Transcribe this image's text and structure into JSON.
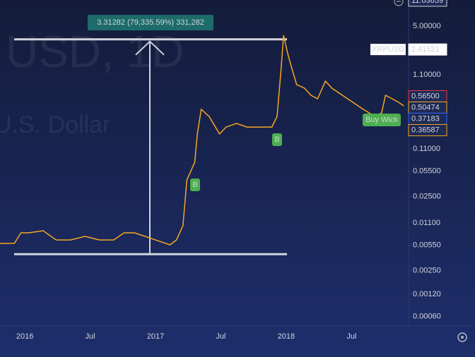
{
  "chart_data": {
    "type": "line",
    "watermark": "USD, 1D",
    "watermark_subtitle": "U.S. Dollar",
    "symbol": "XRPUSD",
    "measure_label": "3.31282 (79,335.59%) 331,282",
    "measure_range": [
      0.004176,
      3.317
    ],
    "signal_labels": [
      "B",
      "B",
      "Buy Wick"
    ],
    "log_scale": true,
    "xlim": [
      2015.81,
      2018.92
    ],
    "ylim": [
      0.00042,
      11.25
    ],
    "xticks": [
      {
        "value": 2016,
        "label": "2016"
      },
      {
        "value": 2016.5,
        "label": "Jul"
      },
      {
        "value": 2017,
        "label": "2017"
      },
      {
        "value": 2017.5,
        "label": "Jul"
      },
      {
        "value": 2018,
        "label": "2018"
      },
      {
        "value": 2018.5,
        "label": "Jul"
      }
    ],
    "yticks": [
      {
        "value": 5,
        "label": "5.00000"
      },
      {
        "value": 1.1,
        "label": "1.10000"
      },
      {
        "value": 0.11,
        "label": "0.11000"
      },
      {
        "value": 0.055,
        "label": "0.05500"
      },
      {
        "value": 0.025,
        "label": "0.02500"
      },
      {
        "value": 0.011,
        "label": "0.01100"
      },
      {
        "value": 0.0055,
        "label": "0.00550"
      },
      {
        "value": 0.0025,
        "label": "0.00250"
      },
      {
        "value": 0.0012,
        "label": "0.00120"
      },
      {
        "value": 0.0006,
        "label": "0.00060"
      }
    ],
    "price_labels": [
      {
        "value": 11.03659,
        "label": "11.03659",
        "color": "#d1d4dc"
      },
      {
        "value": 2.41521,
        "label": "2.41521",
        "color": "#ffffff"
      },
      {
        "value": 0.565,
        "label": "0.56500",
        "color": "#f23645"
      },
      {
        "value": 0.50474,
        "label": "0.50474",
        "color": "#f5a623"
      },
      {
        "value": 0.37183,
        "label": "0.37183",
        "color": "#2962ff"
      },
      {
        "value": 0.36587,
        "label": "0.36587",
        "color": "#f5a623"
      }
    ],
    "series": [
      {
        "name": "XRPUSD",
        "color": "#f5a623",
        "x": [
          2015.81,
          2015.92,
          2015.97,
          2016.03,
          2016.14,
          2016.24,
          2016.35,
          2016.46,
          2016.57,
          2016.68,
          2016.76,
          2016.84,
          2016.92,
          2017.0,
          2017.11,
          2017.16,
          2017.21,
          2017.24,
          2017.3,
          2017.32,
          2017.35,
          2017.41,
          2017.49,
          2017.54,
          2017.62,
          2017.7,
          2017.81,
          2017.89,
          2017.93,
          2017.96,
          2017.98,
          2018.01,
          2018.04,
          2018.08,
          2018.14,
          2018.19,
          2018.24,
          2018.3,
          2018.35,
          2018.43,
          2018.51,
          2018.59,
          2018.68,
          2018.73,
          2018.76,
          2018.81,
          2018.86,
          2018.9
        ],
        "values": [
          0.00583,
          0.00583,
          0.00811,
          0.00811,
          0.00865,
          0.0065,
          0.0065,
          0.00726,
          0.0065,
          0.0065,
          0.00811,
          0.00811,
          0.00726,
          0.0065,
          0.00558,
          0.0065,
          0.0101,
          0.042,
          0.0726,
          0.175,
          0.376,
          0.302,
          0.175,
          0.217,
          0.243,
          0.217,
          0.217,
          0.217,
          0.302,
          1.26,
          3.76,
          2.17,
          1.4,
          0.811,
          0.726,
          0.583,
          0.522,
          0.904,
          0.726,
          0.583,
          0.468,
          0.376,
          0.302,
          0.337,
          0.583,
          0.522,
          0.468,
          0.42
        ]
      }
    ]
  }
}
